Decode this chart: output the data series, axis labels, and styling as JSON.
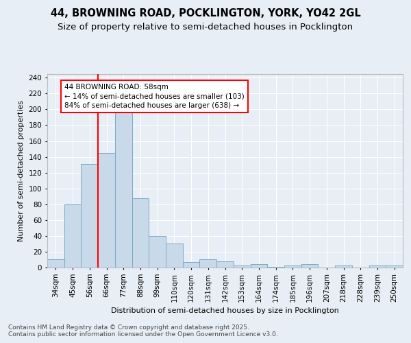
{
  "title1": "44, BROWNING ROAD, POCKLINGTON, YORK, YO42 2GL",
  "title2": "Size of property relative to semi-detached houses in Pocklington",
  "xlabel": "Distribution of semi-detached houses by size in Pocklington",
  "ylabel": "Number of semi-detached properties",
  "annotation_title": "44 BROWNING ROAD: 58sqm",
  "annotation_line1": "← 14% of semi-detached houses are smaller (103)",
  "annotation_line2": "84% of semi-detached houses are larger (638) →",
  "footer1": "Contains HM Land Registry data © Crown copyright and database right 2025.",
  "footer2": "Contains public sector information licensed under the Open Government Licence v3.0.",
  "categories": [
    "34sqm",
    "45sqm",
    "56sqm",
    "66sqm",
    "77sqm",
    "88sqm",
    "99sqm",
    "110sqm",
    "120sqm",
    "131sqm",
    "142sqm",
    "153sqm",
    "164sqm",
    "174sqm",
    "185sqm",
    "196sqm",
    "207sqm",
    "218sqm",
    "228sqm",
    "239sqm",
    "250sqm"
  ],
  "bar_values": [
    10,
    80,
    131,
    145,
    198,
    88,
    40,
    30,
    7,
    10,
    8,
    3,
    4,
    1,
    3,
    4,
    0,
    3,
    0,
    3,
    3
  ],
  "bar_color": "#c8daea",
  "bar_edge_color": "#7aaac8",
  "red_line_index": 2.5,
  "ylim": [
    0,
    245
  ],
  "yticks": [
    0,
    20,
    40,
    60,
    80,
    100,
    120,
    140,
    160,
    180,
    200,
    220,
    240
  ],
  "background_color": "#e8eef5",
  "plot_bg_color": "#e8eef5",
  "title_fontsize": 10.5,
  "subtitle_fontsize": 9.5,
  "axis_fontsize": 8,
  "tick_fontsize": 7.5,
  "footer_fontsize": 6.5
}
